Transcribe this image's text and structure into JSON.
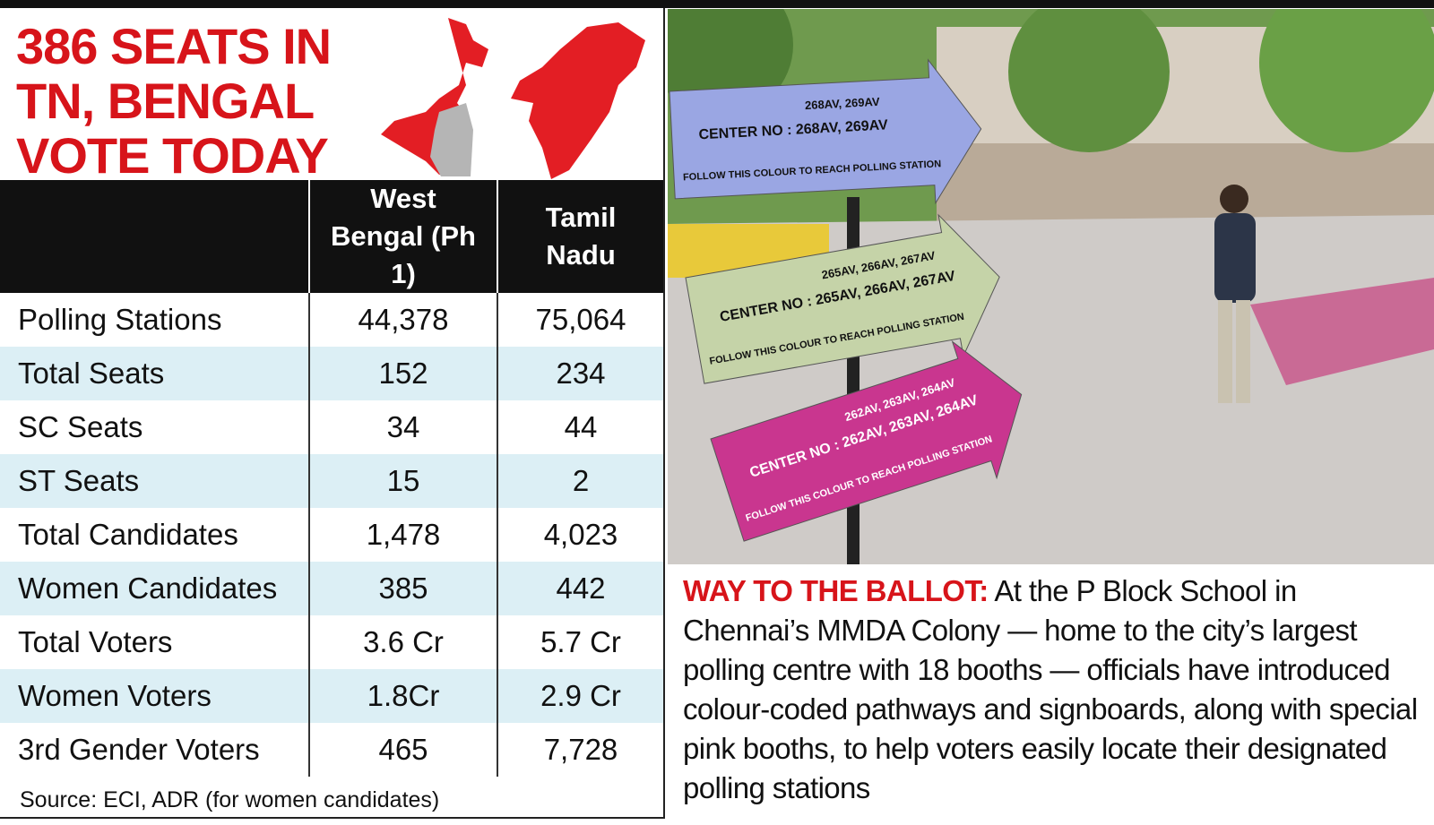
{
  "header": {
    "title_lines": [
      "386 SEATS IN",
      "TN, BENGAL",
      "VOTE TODAY"
    ]
  },
  "table": {
    "columns": [
      "West Bengal (Ph 1)",
      "Tamil Nadu"
    ],
    "rows": [
      [
        "Polling Stations",
        "44,378",
        "75,064"
      ],
      [
        "Total Seats",
        "152",
        "234"
      ],
      [
        "SC Seats",
        "34",
        "44"
      ],
      [
        "ST Seats",
        "15",
        "2"
      ],
      [
        "Total Candidates",
        "1,478",
        "4,023"
      ],
      [
        "Women Candidates",
        "385",
        "442"
      ],
      [
        "Total Voters",
        "3.6 Cr",
        "5.7 Cr"
      ],
      [
        "Women Voters",
        "1.8Cr",
        "2.9 Cr"
      ],
      [
        "3rd Gender Voters",
        "465",
        "7,728"
      ]
    ]
  },
  "source": "Source: ECI, ADR (for women candidates)",
  "photo": {
    "signs": [
      {
        "code": "268AV, 269AV",
        "center": "CENTER NO : 268AV, 269AV",
        "follow": "FOLLOW THIS COLOUR TO REACH POLLING STATION"
      },
      {
        "code": "265AV, 266AV, 267AV",
        "center": "CENTER NO : 265AV, 266AV, 267AV",
        "follow": "FOLLOW THIS COLOUR TO REACH POLLING STATION"
      },
      {
        "code": "262AV, 263AV, 264AV",
        "center": "CENTER NO : 262AV, 263AV, 264AV",
        "follow": "FOLLOW THIS COLOUR TO REACH POLLING STATION"
      }
    ]
  },
  "caption": {
    "label": "WAY TO THE BALLOT:",
    "text": "At the P Block School in Chennai’s MMDA Colony — home to the city’s largest polling centre with 18 booths — officials have introduced colour-coded pathways and signboards, along with special pink booths, to help voters easily locate their designated polling stations"
  }
}
